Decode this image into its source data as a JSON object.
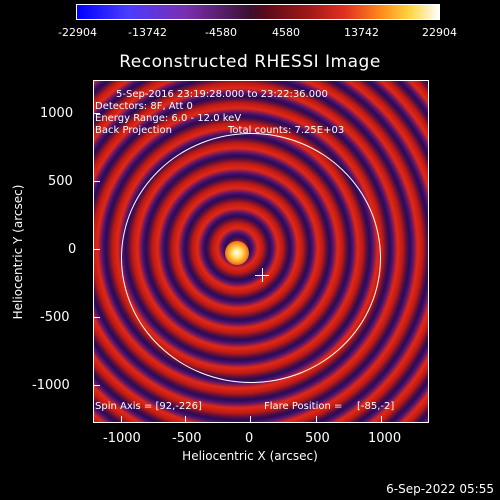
{
  "colorbar": {
    "labels": [
      "-22904",
      "-13742",
      "-4580",
      "4580",
      "13742",
      "22904"
    ]
  },
  "title": "Reconstructed RHESSI Image",
  "info": {
    "time_range": "5-Sep-2016 23:19:28.000 to 23:22:36.000",
    "detectors": "Detectors: 8F, Att 0",
    "energy_range": "Energy Range: 6.0 - 12.0 keV",
    "method": "Back Projection",
    "total_counts": "Total counts: 7.25E+03",
    "spin_axis": "Spin Axis = [92,-226]",
    "flare_position_label": "Flare Position =",
    "flare_position_value": "[-85,-2]"
  },
  "axes": {
    "y_ticks": [
      "1000",
      "500",
      "0",
      "-500",
      "-1000"
    ],
    "x_ticks": [
      "-1000",
      "-500",
      "0",
      "500",
      "1000"
    ],
    "y_label": "Heliocentric Y (arcsec)",
    "x_label": "Heliocentric X (arcsec)"
  },
  "timestamp": "6-Sep-2022 05:55",
  "colors": {
    "background": "#000000",
    "axes": "#ffffff"
  }
}
